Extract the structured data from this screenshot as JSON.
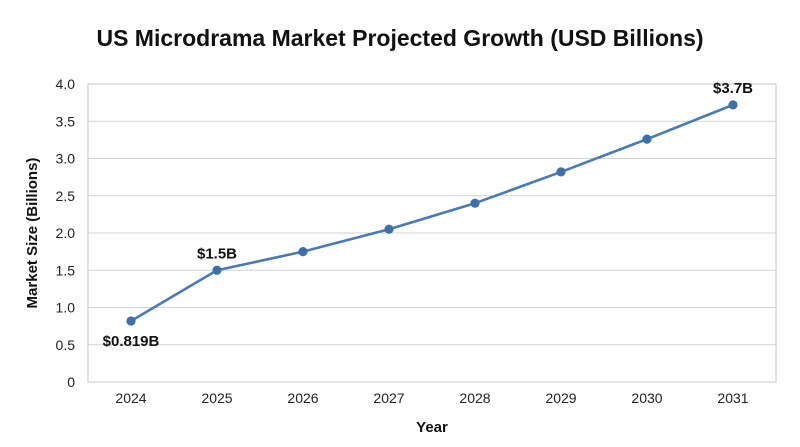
{
  "chart_data": {
    "type": "line",
    "title": "US Microdrama Market Projected Growth (USD Billions)",
    "xlabel": "Year",
    "ylabel": "Market Size (Billions)",
    "categories": [
      "2024",
      "2025",
      "2026",
      "2027",
      "2028",
      "2029",
      "2030",
      "2031"
    ],
    "series": [
      {
        "values": [
          0.819,
          1.5,
          1.75,
          2.05,
          2.4,
          2.82,
          3.26,
          3.72
        ]
      }
    ],
    "ylim": [
      0,
      4.0
    ],
    "yticks": [
      "0",
      "0.5",
      "1.0",
      "1.5",
      "2.0",
      "2.5",
      "3.0",
      "3.5",
      "4.0"
    ],
    "data_labels": [
      {
        "index": 0,
        "text": "$0.819B",
        "placement": "below"
      },
      {
        "index": 1,
        "text": "$1.5B",
        "placement": "above"
      },
      {
        "index": 7,
        "text": "$3.7B",
        "placement": "above"
      }
    ],
    "grid": true,
    "legend": "none",
    "colors": {
      "line": "#4a7ab5",
      "marker": "#3f6fa8"
    }
  }
}
